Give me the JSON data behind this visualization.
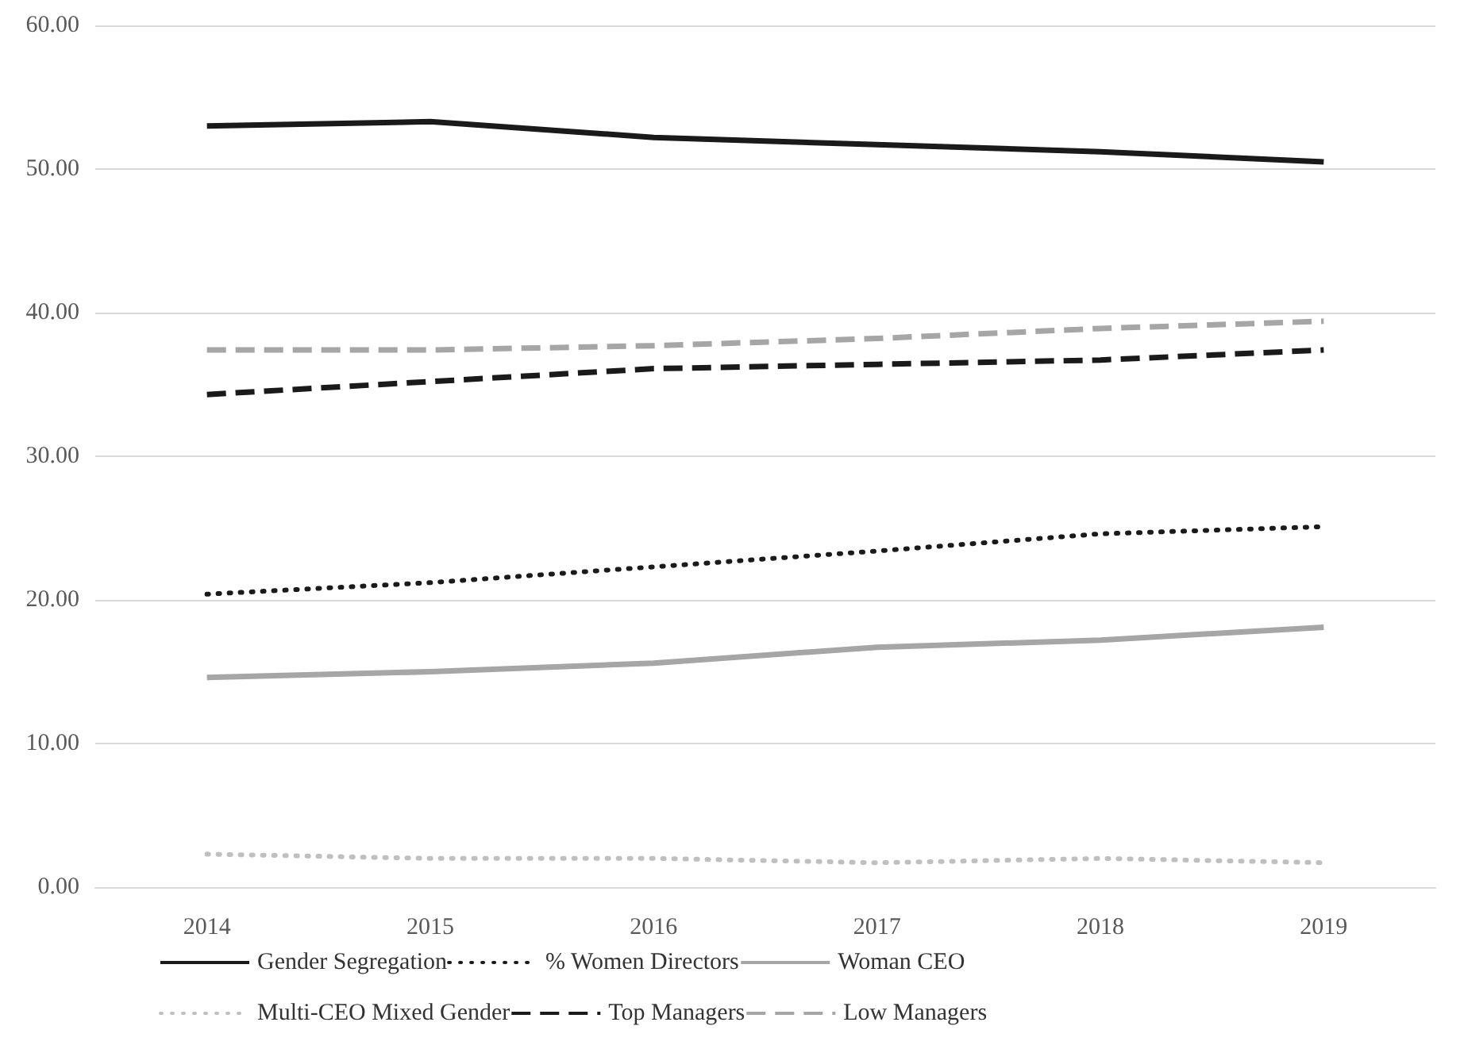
{
  "chart_data": {
    "type": "line",
    "categories": [
      "2014",
      "2015",
      "2016",
      "2017",
      "2018",
      "2019"
    ],
    "ylim": [
      0,
      60
    ],
    "yticks": [
      {
        "value": 0,
        "label": "0.00"
      },
      {
        "value": 10,
        "label": "10.00"
      },
      {
        "value": 20,
        "label": "20.00"
      },
      {
        "value": 30,
        "label": "30.00"
      },
      {
        "value": 40,
        "label": "40.00"
      },
      {
        "value": 50,
        "label": "50.00"
      },
      {
        "value": 60,
        "label": "60.00"
      }
    ],
    "grid": "y",
    "legend": "bottom",
    "marker": "none",
    "series": [
      {
        "name": "Gender Segregation",
        "color": "#1a1a1a",
        "line_style": "solid",
        "values": [
          53.0,
          53.3,
          52.2,
          51.7,
          51.2,
          50.5
        ]
      },
      {
        "name": "% Women Directors",
        "color": "#1a1a1a",
        "line_style": "dotted",
        "values": [
          20.4,
          21.2,
          22.3,
          23.4,
          24.6,
          25.1
        ]
      },
      {
        "name": "Woman CEO",
        "color": "#a6a6a6",
        "line_style": "solid",
        "values": [
          14.6,
          15.0,
          15.6,
          16.7,
          17.2,
          18.1
        ]
      },
      {
        "name": "Multi-CEO Mixed Gender",
        "color": "#bfbfbf",
        "line_style": "dotted",
        "values": [
          2.3,
          2.0,
          2.0,
          1.7,
          2.0,
          1.7
        ]
      },
      {
        "name": "Top Managers",
        "color": "#1a1a1a",
        "line_style": "dashed",
        "values": [
          34.3,
          35.2,
          36.1,
          36.4,
          36.7,
          37.4
        ]
      },
      {
        "name": "Low Managers",
        "color": "#a6a6a6",
        "line_style": "dashed",
        "values": [
          37.4,
          37.4,
          37.7,
          38.2,
          38.9,
          39.4
        ]
      }
    ]
  }
}
